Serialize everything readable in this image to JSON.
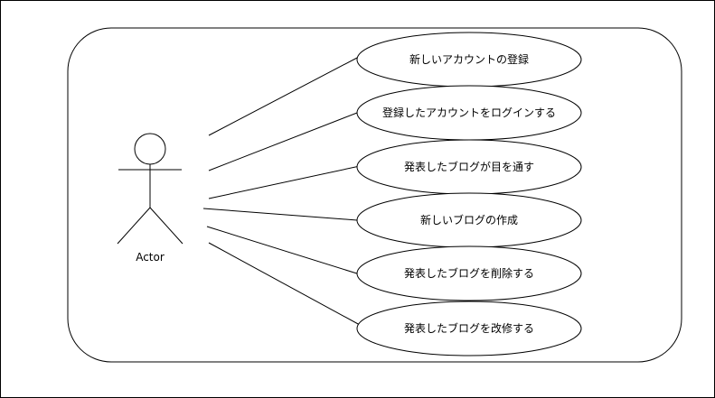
{
  "diagram": {
    "type": "use-case",
    "actor": {
      "label": "Actor"
    },
    "use_cases": [
      {
        "label": "新しいアカウントの登録"
      },
      {
        "label": "登録したアカウントをログインする"
      },
      {
        "label": "発表したブログが目を通す"
      },
      {
        "label": "新しいブログの作成"
      },
      {
        "label": "発表したブログを削除する"
      },
      {
        "label": "発表したブログを改修する"
      }
    ]
  },
  "colors": {
    "stroke": "#000000",
    "fill": "#ffffff",
    "background": "#ffffff"
  }
}
